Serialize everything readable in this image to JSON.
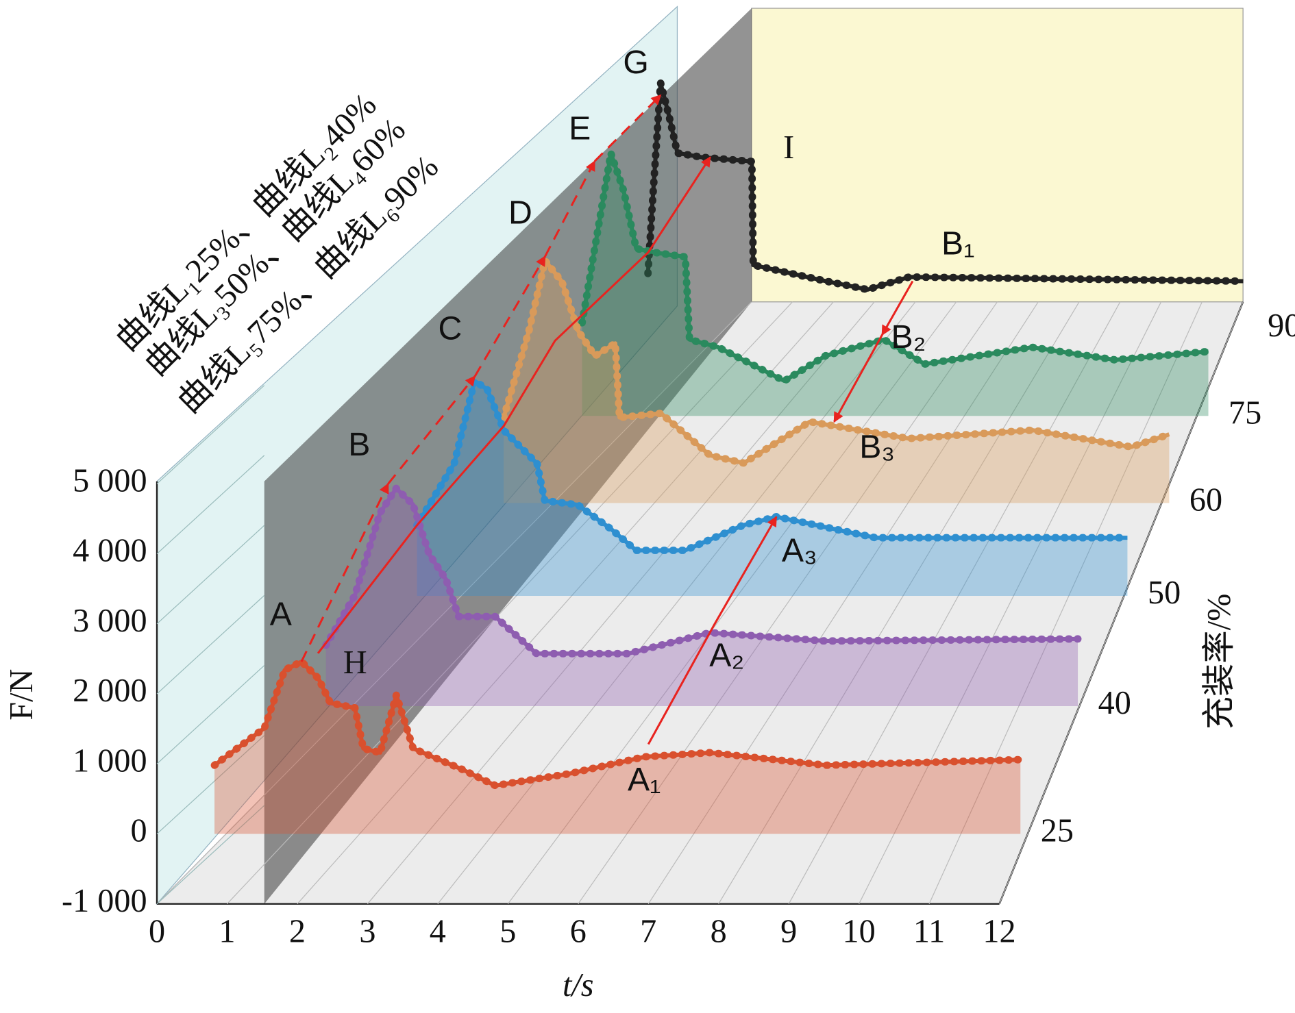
{
  "chart_data": {
    "type": "waterfall3d",
    "xlabel": "t/s",
    "ylabel": "F/N",
    "zlabel": "充装率/%",
    "xlim": [
      0,
      12
    ],
    "xticks": [
      0,
      1,
      2,
      3,
      4,
      5,
      6,
      7,
      8,
      9,
      10,
      11,
      12
    ],
    "ylim": [
      -1000,
      5000
    ],
    "yticks": [
      {
        "value": -1000,
        "label": "-1 000"
      },
      0,
      {
        "value": 1000,
        "label": "1 000"
      },
      {
        "value": 2000,
        "label": "2 000"
      },
      {
        "value": 3000,
        "label": "3 000"
      },
      {
        "value": 4000,
        "label": "4 000"
      },
      {
        "value": 5000,
        "label": "5 000"
      }
    ],
    "zticks": [
      25,
      40,
      50,
      60,
      75,
      90
    ],
    "grid": true,
    "legend_separator": "、",
    "series": [
      {
        "name": "曲线L₁25%",
        "color": "#d9502e",
        "x": [
          0.82,
          1.53,
          1.82,
          2.06,
          2.3,
          2.47,
          2.82,
          2.94,
          3.18,
          3.41,
          3.65,
          4.35,
          4.82,
          5.88,
          6.94,
          7.88,
          9.53,
          12.3
        ],
        "values": [
          980,
          1510,
          2340,
          2460,
          2220,
          1870,
          1800,
          1220,
          1160,
          1980,
          1220,
          920,
          690,
          860,
          1100,
          1160,
          980,
          1060
        ]
      },
      {
        "name": "曲线L₂40%",
        "color": "#8e5db0",
        "x": [
          1.59,
          2.0,
          2.36,
          2.59,
          2.83,
          3.06,
          3.3,
          3.48,
          4.0,
          4.59,
          5.89,
          7.06,
          8.71,
          12.3
        ],
        "values": [
          870,
          1580,
          2760,
          3110,
          2880,
          2170,
          1810,
          1280,
          1280,
          750,
          750,
          1050,
          930,
          960
        ]
      },
      {
        "name": "曲线L₃50%",
        "color": "#2e8fd0",
        "x": [
          2.18,
          2.71,
          3.0,
          3.18,
          3.42,
          3.89,
          4.0,
          4.47,
          4.95,
          5.3,
          6.0,
          6.83,
          7.3,
          8.71,
          12.3
        ],
        "values": [
          1010,
          1890,
          3070,
          2950,
          2360,
          1890,
          1360,
          1300,
          950,
          650,
          650,
          1010,
          1130,
          830,
          830
        ]
      },
      {
        "name": "曲线L₄60%",
        "color": "#d99a5a",
        "x": [
          2.82,
          3.18,
          3.41,
          3.65,
          3.88,
          4.12,
          4.41,
          4.47,
          5.06,
          5.76,
          6.24,
          7.18,
          8.59,
          10.35,
          11.76,
          12.3
        ],
        "values": [
          1220,
          2460,
          3460,
          3160,
          2460,
          2100,
          2280,
          1220,
          1280,
          680,
          570,
          1160,
          920,
          1040,
          800,
          980
        ]
      },
      {
        "name": "曲线L₅75%",
        "color": "#2a8a5e",
        "x": [
          3.38,
          3.62,
          3.79,
          3.97,
          4.15,
          4.44,
          4.85,
          4.91,
          5.32,
          6.26,
          6.85,
          7.68,
          8.26,
          9.79,
          10.97,
          12.3
        ],
        "values": [
          1330,
          2750,
          3750,
          3220,
          2390,
          2330,
          2270,
          1090,
          980,
          500,
          860,
          1090,
          740,
          980,
          800,
          920
        ]
      },
      {
        "name": "曲线L₆90%",
        "color": "#222222",
        "x": [
          3.76,
          3.82,
          3.94,
          4.06,
          4.18,
          4.53,
          5.24,
          5.26,
          6.3,
          6.89,
          7.48,
          12.24
        ],
        "values": [
          790,
          1740,
          3510,
          3040,
          2510,
          2450,
          2390,
          910,
          680,
          560,
          740,
          680
        ]
      }
    ],
    "annotations": [
      "A",
      "B",
      "C",
      "D",
      "E",
      "G",
      "H",
      "I",
      "A₁",
      "A₂",
      "A₃",
      "B₁",
      "B₂",
      "B₃"
    ]
  }
}
